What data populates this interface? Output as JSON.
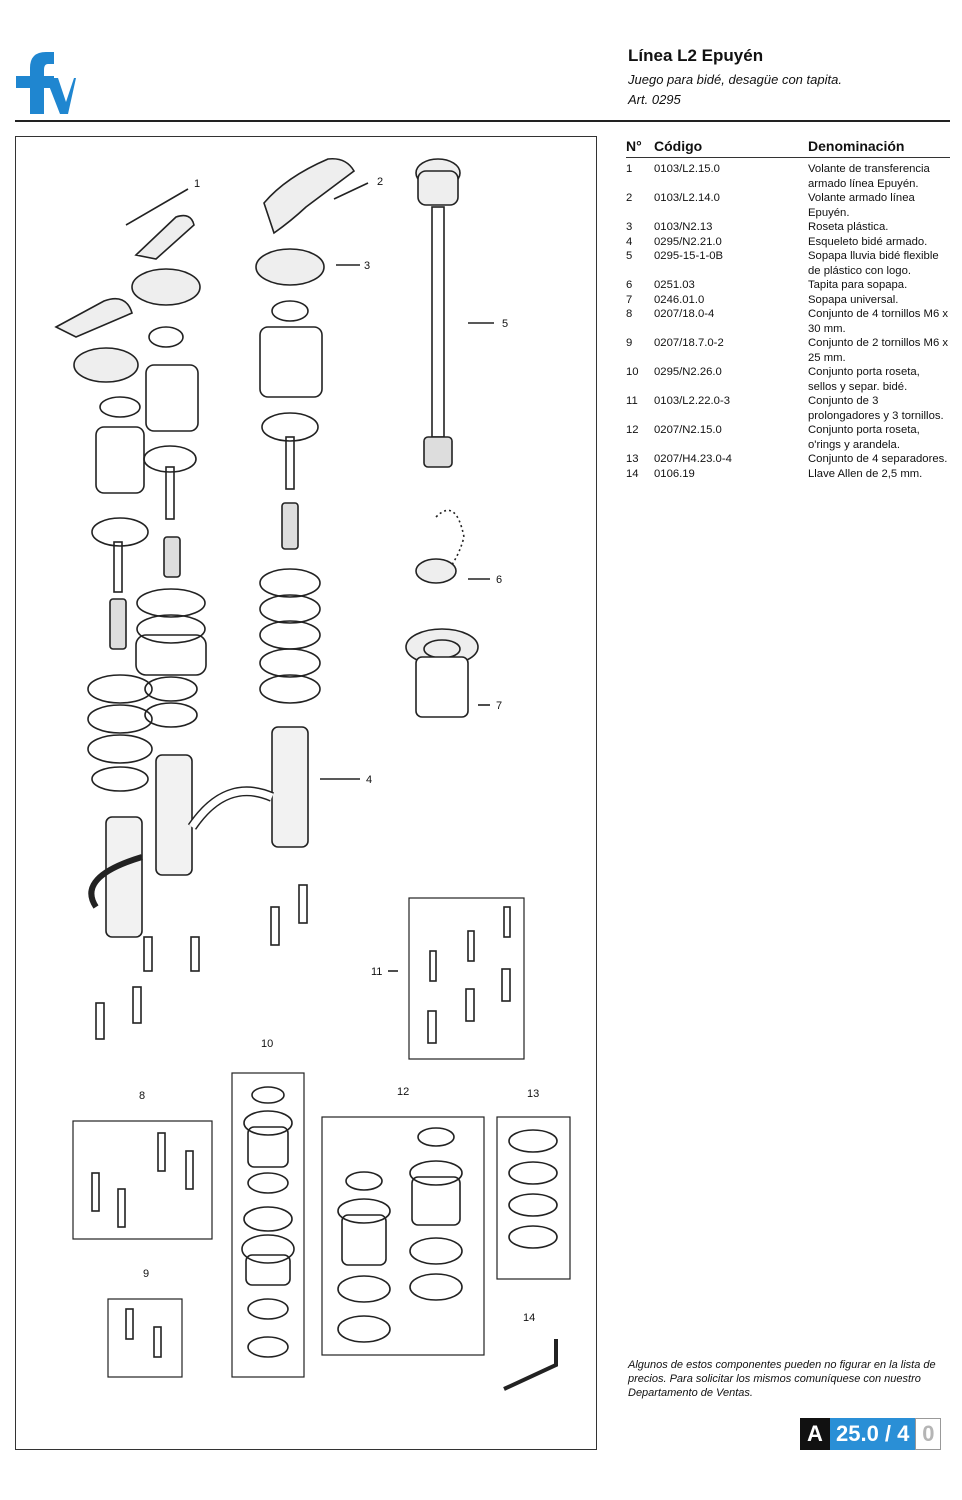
{
  "header": {
    "title": "Línea L2 Epuyén",
    "subtitle": "Juego para bidé, desagüe con tapita.",
    "article": "Art. 0295"
  },
  "brand": {
    "logo_text": "fv",
    "color": "#1f86d0"
  },
  "parts_table": {
    "headers": [
      "N°",
      "Código",
      "Denominación"
    ],
    "rows": [
      {
        "n": "1",
        "code": "0103/L2.15.0",
        "name": "Volante de transferencia armado línea Epuyén."
      },
      {
        "n": "2",
        "code": "0103/L2.14.0",
        "name": "Volante armado línea Epuyén."
      },
      {
        "n": "3",
        "code": "0103/N2.13",
        "name": "Roseta plástica."
      },
      {
        "n": "4",
        "code": "0295/N2.21.0",
        "name": "Esqueleto bidé armado."
      },
      {
        "n": "5",
        "code": "0295-15-1-0B",
        "name": "Sopapa lluvia bidé flexible de plástico con logo."
      },
      {
        "n": "6",
        "code": "0251.03",
        "name": "Tapita para sopapa."
      },
      {
        "n": "7",
        "code": "0246.01.0",
        "name": "Sopapa universal."
      },
      {
        "n": "8",
        "code": "0207/18.0-4",
        "name": "Conjunto de 4 tornillos M6 x 30 mm."
      },
      {
        "n": "9",
        "code": "0207/18.7.0-2",
        "name": "Conjunto de 2 tornillos M6 x 25 mm."
      },
      {
        "n": "10",
        "code": "0295/N2.26.0",
        "name": "Conjunto porta roseta, sellos y separ. bidé."
      },
      {
        "n": "11",
        "code": "0103/L2.22.0-3",
        "name": "Conjunto de 3 prolongadores y 3 tornillos."
      },
      {
        "n": "12",
        "code": "0207/N2.15.0",
        "name": "Conjunto porta roseta, o'rings y arandela."
      },
      {
        "n": "13",
        "code": "0207/H4.23.0-4",
        "name": "Conjunto de 4 separadores."
      },
      {
        "n": "14",
        "code": "0106.19",
        "name": "Llave Allen de 2,5 mm."
      }
    ]
  },
  "diagram_labels": {
    "l1": "1",
    "l2": "2",
    "l3": "3",
    "l4": "4",
    "l5": "5",
    "l6": "6",
    "l7": "7",
    "l8": "8",
    "l9": "9",
    "l10": "10",
    "l11": "11",
    "l12": "12",
    "l13": "13",
    "l14": "14"
  },
  "note": "Algunos de estos componentes pueden no figurar en la lista de precios. Para solicitar los mismos comuníquese con nuestro Departamento de Ventas.",
  "page_badge": {
    "letter": "A",
    "number": "25.0 / 4",
    "suffix": "0",
    "accent": "#2a8fd6"
  }
}
